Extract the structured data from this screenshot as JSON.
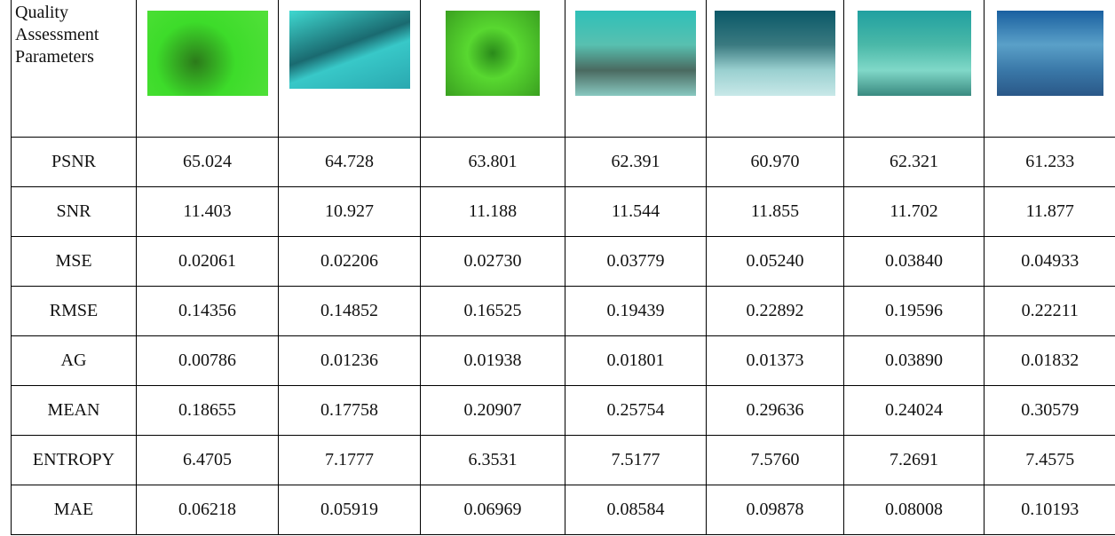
{
  "table": {
    "header": "Quality Assessment Parameters",
    "rows": [
      [
        "PSNR",
        "65.024",
        "64.728",
        "63.801",
        "62.391",
        "60.970",
        "62.321",
        "61.233"
      ],
      [
        "SNR",
        "11.403",
        "10.927",
        "11.188",
        "11.544",
        "11.855",
        "11.702",
        "11.877"
      ],
      [
        "MSE",
        "0.02061",
        "0.02206",
        "0.02730",
        "0.03779",
        "0.05240",
        "0.03840",
        "0.04933"
      ],
      [
        "RMSE",
        "0.14356",
        "0.14852",
        "0.16525",
        "0.19439",
        "0.22892",
        "0.19596",
        "0.22211"
      ],
      [
        "AG",
        "0.00786",
        "0.01236",
        "0.01938",
        "0.01801",
        "0.01373",
        "0.03890",
        "0.01832"
      ],
      [
        "MEAN",
        "0.18655",
        "0.17758",
        "0.20907",
        "0.25754",
        "0.29636",
        "0.24024",
        "0.30579"
      ],
      [
        "ENTROPY",
        "6.4705",
        "7.1777",
        "6.3531",
        "7.5177",
        "7.5760",
        "7.2691",
        "7.4575"
      ],
      [
        "MAE",
        "0.06218",
        "0.05919",
        "0.06969",
        "0.08584",
        "0.09878",
        "0.08008",
        "0.10193"
      ]
    ]
  }
}
